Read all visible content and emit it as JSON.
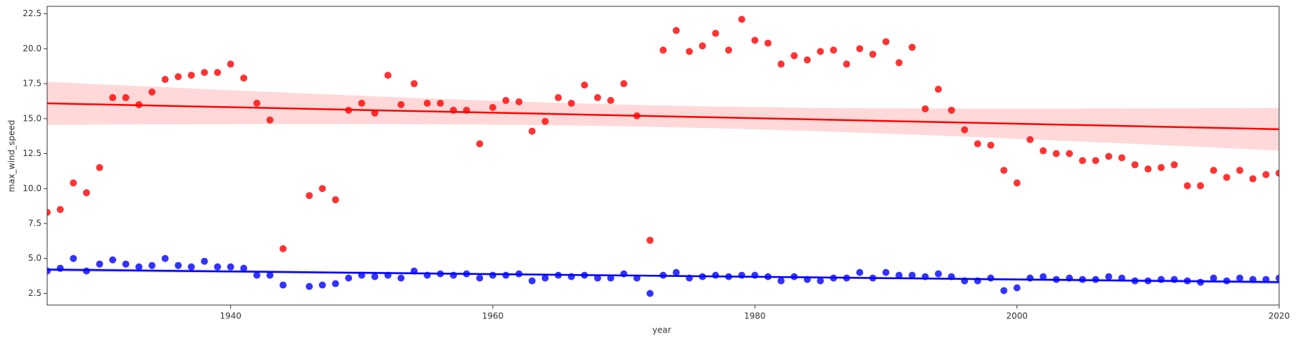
{
  "chart_data": {
    "type": "scatter",
    "xlabel": "year",
    "ylabel": "max_wind_speed",
    "x": [
      1926,
      1927,
      1928,
      1929,
      1930,
      1931,
      1932,
      1933,
      1934,
      1935,
      1936,
      1937,
      1938,
      1939,
      1940,
      1941,
      1942,
      1943,
      1944,
      1946,
      1947,
      1948,
      1949,
      1950,
      1951,
      1952,
      1953,
      1954,
      1955,
      1956,
      1957,
      1958,
      1959,
      1960,
      1961,
      1962,
      1963,
      1964,
      1965,
      1966,
      1967,
      1968,
      1969,
      1970,
      1971,
      1972,
      1973,
      1974,
      1975,
      1976,
      1977,
      1978,
      1979,
      1980,
      1981,
      1982,
      1983,
      1984,
      1985,
      1986,
      1987,
      1988,
      1989,
      1990,
      1991,
      1992,
      1993,
      1994,
      1995,
      1996,
      1997,
      1998,
      1999,
      2000,
      2001,
      2002,
      2003,
      2004,
      2005,
      2006,
      2007,
      2008,
      2009,
      2010,
      2011,
      2012,
      2013,
      2014,
      2015,
      2016,
      2017,
      2018,
      2019,
      2020
    ],
    "series": [
      {
        "color": "#ff0000",
        "values": [
          8.3,
          8.5,
          10.4,
          9.7,
          11.5,
          16.5,
          16.5,
          16.0,
          16.9,
          17.8,
          18.0,
          18.1,
          18.3,
          18.3,
          18.9,
          17.9,
          16.1,
          14.9,
          5.7,
          9.5,
          10.0,
          9.2,
          15.6,
          16.1,
          15.4,
          18.1,
          16.0,
          17.5,
          16.1,
          16.1,
          15.6,
          15.6,
          13.2,
          15.8,
          16.3,
          16.2,
          14.1,
          14.8,
          16.5,
          16.1,
          17.4,
          16.5,
          16.3,
          17.5,
          15.2,
          6.3,
          19.9,
          21.3,
          19.8,
          20.2,
          21.1,
          19.9,
          22.1,
          20.6,
          20.4,
          18.9,
          19.5,
          19.2,
          19.8,
          19.9,
          18.9,
          20.0,
          19.6,
          20.5,
          19.0,
          20.1,
          15.7,
          17.1,
          15.6,
          14.2,
          13.2,
          13.1,
          11.3,
          10.4,
          13.5,
          12.7,
          12.5,
          12.5,
          12.0,
          12.0,
          12.3,
          12.2,
          11.7,
          11.4,
          11.5,
          11.7,
          10.2,
          10.2,
          11.3,
          10.8,
          11.3,
          10.7,
          11.0,
          11.1
        ]
      },
      {
        "color": "#0000ff",
        "values": [
          4.1,
          4.3,
          5.0,
          4.1,
          4.6,
          4.9,
          4.6,
          4.4,
          4.5,
          5.0,
          4.5,
          4.4,
          4.8,
          4.4,
          4.4,
          4.3,
          3.8,
          3.8,
          3.1,
          3.0,
          3.1,
          3.2,
          3.6,
          3.8,
          3.7,
          3.8,
          3.6,
          4.1,
          3.8,
          3.9,
          3.8,
          3.9,
          3.6,
          3.8,
          3.8,
          3.9,
          3.4,
          3.6,
          3.8,
          3.7,
          3.8,
          3.6,
          3.6,
          3.9,
          3.6,
          2.5,
          3.8,
          4.0,
          3.6,
          3.7,
          3.8,
          3.7,
          3.8,
          3.8,
          3.7,
          3.4,
          3.7,
          3.5,
          3.4,
          3.6,
          3.6,
          4.0,
          3.6,
          4.0,
          3.8,
          3.8,
          3.7,
          3.9,
          3.7,
          3.4,
          3.4,
          3.6,
          2.7,
          2.9,
          3.6,
          3.7,
          3.5,
          3.6,
          3.5,
          3.5,
          3.7,
          3.6,
          3.4,
          3.4,
          3.5,
          3.5,
          3.4,
          3.3,
          3.6,
          3.4,
          3.6,
          3.5,
          3.5,
          3.6
        ]
      }
    ],
    "regression": true,
    "xlim": [
      1926,
      2020
    ],
    "xticks": [
      1940,
      1960,
      1980,
      2000,
      2020
    ],
    "ylim": [
      1.67,
      23.03
    ],
    "yticks": [
      2.5,
      {
        "value": 5,
        "label": "5.0"
      },
      7.5,
      {
        "value": 10,
        "label": "10.0"
      },
      12.5,
      {
        "value": 15,
        "label": "15.0"
      },
      17.5,
      {
        "value": 20,
        "label": "20.0"
      },
      22.5
    ]
  }
}
